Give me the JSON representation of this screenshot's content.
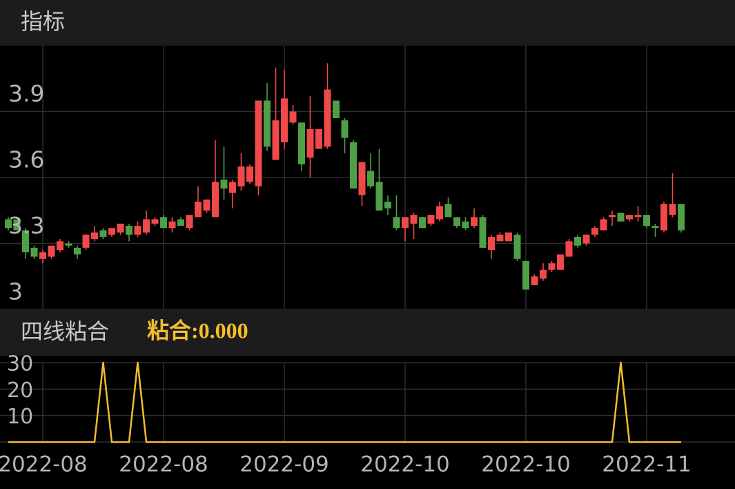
{
  "chart_data": [
    {
      "type": "candlestick",
      "title": "指标",
      "up_color": "#f0494a",
      "down_color": "#4e9f45",
      "ylim": [
        3.0,
        4.2
      ],
      "yticks": [
        3,
        3.3,
        3.6,
        3.9
      ],
      "grid": true,
      "open": [
        3.41,
        3.41,
        3.36,
        3.28,
        3.23,
        3.24,
        3.27,
        3.3,
        3.28,
        3.28,
        3.32,
        3.36,
        3.34,
        3.35,
        3.38,
        3.34,
        3.35,
        3.39,
        3.42,
        3.37,
        3.41,
        3.37,
        3.42,
        3.45,
        3.42,
        3.59,
        3.53,
        3.56,
        3.58,
        3.56,
        3.95,
        3.68,
        3.76,
        3.85,
        3.85,
        3.69,
        3.73,
        3.74,
        3.95,
        3.86,
        3.76,
        3.52,
        3.63,
        3.58,
        3.49,
        3.42,
        3.37,
        3.39,
        3.42,
        3.39,
        3.41,
        3.48,
        3.42,
        3.4,
        3.38,
        3.42,
        3.27,
        3.31,
        3.31,
        3.34,
        3.22,
        3.11,
        3.14,
        3.18,
        3.18,
        3.24,
        3.33,
        3.3,
        3.34,
        3.36,
        3.42,
        3.44,
        3.41,
        3.42,
        3.43,
        3.38,
        3.36,
        3.43,
        3.48
      ],
      "high": [
        3.42,
        3.41,
        3.37,
        3.29,
        3.27,
        3.29,
        3.32,
        3.31,
        3.29,
        3.34,
        3.38,
        3.37,
        3.37,
        3.39,
        3.39,
        3.4,
        3.45,
        3.42,
        3.43,
        3.42,
        3.42,
        3.43,
        3.56,
        3.5,
        3.77,
        3.74,
        3.59,
        3.71,
        3.66,
        3.95,
        4.03,
        4.1,
        4.09,
        3.93,
        3.85,
        3.97,
        3.82,
        4.12,
        3.95,
        3.87,
        3.77,
        3.67,
        3.71,
        3.73,
        3.52,
        3.52,
        3.42,
        3.44,
        3.42,
        3.43,
        3.49,
        3.51,
        3.42,
        3.42,
        3.46,
        3.43,
        3.34,
        3.35,
        3.35,
        3.35,
        3.22,
        3.16,
        3.21,
        3.22,
        3.25,
        3.32,
        3.34,
        3.34,
        3.38,
        3.42,
        3.45,
        3.44,
        3.43,
        3.47,
        3.43,
        3.39,
        3.49,
        3.62,
        3.48
      ],
      "low": [
        3.36,
        3.36,
        3.23,
        3.23,
        3.21,
        3.23,
        3.26,
        3.28,
        3.23,
        3.27,
        3.31,
        3.32,
        3.33,
        3.34,
        3.31,
        3.33,
        3.34,
        3.38,
        3.37,
        3.35,
        3.38,
        3.36,
        3.42,
        3.44,
        3.42,
        3.5,
        3.46,
        3.54,
        3.57,
        3.52,
        3.72,
        3.68,
        3.73,
        3.84,
        3.63,
        3.6,
        3.73,
        3.73,
        3.87,
        3.71,
        3.55,
        3.47,
        3.55,
        3.45,
        3.43,
        3.36,
        3.31,
        3.32,
        3.37,
        3.38,
        3.4,
        3.42,
        3.37,
        3.36,
        3.37,
        3.28,
        3.23,
        3.31,
        3.31,
        3.22,
        3.09,
        3.11,
        3.13,
        3.17,
        3.18,
        3.24,
        3.28,
        3.29,
        3.33,
        3.36,
        3.38,
        3.4,
        3.4,
        3.4,
        3.37,
        3.33,
        3.35,
        3.42,
        3.35
      ],
      "close": [
        3.37,
        3.36,
        3.26,
        3.24,
        3.26,
        3.29,
        3.31,
        3.29,
        3.25,
        3.34,
        3.35,
        3.33,
        3.37,
        3.39,
        3.34,
        3.38,
        3.41,
        3.41,
        3.37,
        3.4,
        3.38,
        3.43,
        3.49,
        3.5,
        3.58,
        3.55,
        3.58,
        3.65,
        3.65,
        3.95,
        3.74,
        3.86,
        3.96,
        3.9,
        3.66,
        3.82,
        3.82,
        4.0,
        3.87,
        3.78,
        3.55,
        3.67,
        3.56,
        3.45,
        3.46,
        3.37,
        3.42,
        3.43,
        3.37,
        3.43,
        3.47,
        3.42,
        3.38,
        3.37,
        3.42,
        3.28,
        3.33,
        3.34,
        3.35,
        3.23,
        3.09,
        3.15,
        3.18,
        3.21,
        3.25,
        3.31,
        3.29,
        3.34,
        3.37,
        3.41,
        3.43,
        3.4,
        3.43,
        3.43,
        3.38,
        3.37,
        3.48,
        3.48,
        3.36
      ]
    },
    {
      "type": "line",
      "title": "四线粘合",
      "annotation": "粘合:0.000",
      "color": "#f5bd2d",
      "ylim": [
        0,
        30
      ],
      "yticks": [
        10,
        20,
        30
      ],
      "grid": true,
      "categories": [
        null,
        null,
        null,
        null,
        "2022-08",
        null,
        null,
        null,
        null,
        null,
        null,
        null,
        null,
        null,
        null,
        null,
        null,
        null,
        "2022-08",
        null,
        null,
        null,
        null,
        null,
        null,
        null,
        null,
        null,
        null,
        null,
        null,
        null,
        "2022-09",
        null,
        null,
        null,
        null,
        null,
        null,
        null,
        null,
        null,
        null,
        null,
        null,
        null,
        "2022-10",
        null,
        null,
        null,
        null,
        null,
        null,
        null,
        null,
        null,
        null,
        null,
        null,
        null,
        "2022-10",
        null,
        null,
        null,
        null,
        null,
        null,
        null,
        null,
        null,
        null,
        null,
        null,
        null,
        "2022-11",
        null,
        null,
        null,
        null
      ],
      "values": [
        0,
        0,
        0,
        0,
        0,
        0,
        0,
        0,
        0,
        0,
        0,
        30,
        0,
        0,
        0,
        30,
        0,
        0,
        0,
        0,
        0,
        0,
        0,
        0,
        0,
        0,
        0,
        0,
        0,
        0,
        0,
        0,
        0,
        0,
        0,
        0,
        0,
        0,
        0,
        0,
        0,
        0,
        0,
        0,
        0,
        0,
        0,
        0,
        0,
        0,
        0,
        0,
        0,
        0,
        0,
        0,
        0,
        0,
        0,
        0,
        0,
        0,
        0,
        0,
        0,
        0,
        0,
        0,
        0,
        0,
        0,
        30,
        0,
        0,
        0,
        0,
        0,
        0,
        0
      ]
    }
  ]
}
